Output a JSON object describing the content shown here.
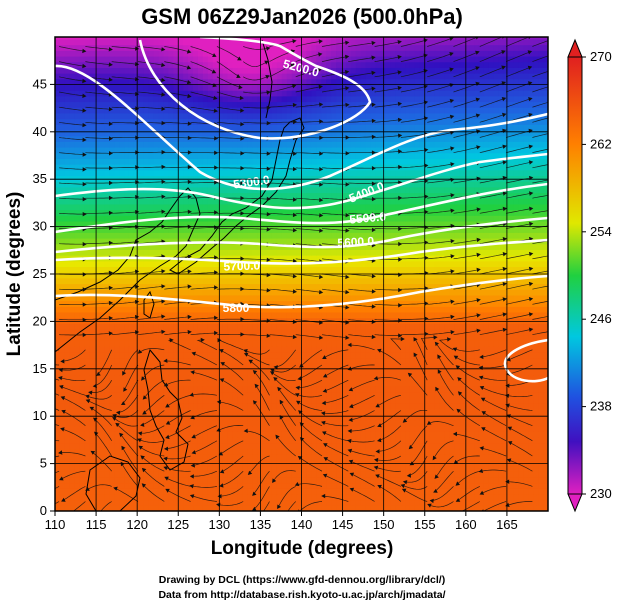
{
  "chart_data": {
    "type": "heatmap",
    "title": "GSM 06Z29Jan2026 (500.0hPa)",
    "xlabel": "Longitude (degrees)",
    "ylabel": "Latitude  (degrees)",
    "xlim": [
      110,
      170
    ],
    "ylim": [
      0,
      50
    ],
    "xticks": [
      "110",
      "115",
      "120",
      "125",
      "130",
      "135",
      "140",
      "145",
      "150",
      "155",
      "160",
      "165"
    ],
    "yticks": [
      "0",
      "5",
      "10",
      "15",
      "20",
      "25",
      "30",
      "35",
      "40",
      "45"
    ],
    "grid": true,
    "field": "temperature (K), shaded",
    "colorbar": {
      "min": 230,
      "max": 270,
      "ticks": [
        "230",
        "238",
        "246",
        "254",
        "262",
        "270"
      ],
      "colors": [
        "#e020c0",
        "#3010c0",
        "#2060e0",
        "#00c8e0",
        "#20d040",
        "#e8e800",
        "#ff8000",
        "#e02020"
      ]
    },
    "contours": {
      "variable": "geopotential height (m)",
      "lines": [
        {
          "label": "5200.0",
          "level": 5200
        },
        {
          "label": "5300.0",
          "level": 5300
        },
        {
          "label": "5400.0",
          "level": 5400
        },
        {
          "label": "5500.0",
          "level": 5500
        },
        {
          "label": "5600.0",
          "level": 5600
        },
        {
          "label": "5700.0",
          "level": 5700
        },
        {
          "label": "5800",
          "level": 5800
        }
      ]
    },
    "overlay": "wind streamlines"
  },
  "credits": {
    "line1": "Drawing by DCL (https://www.gfd-dennou.org/library/dcl/)",
    "line2": "Data from http://database.rish.kyoto-u.ac.jp/arch/jmadata/"
  }
}
